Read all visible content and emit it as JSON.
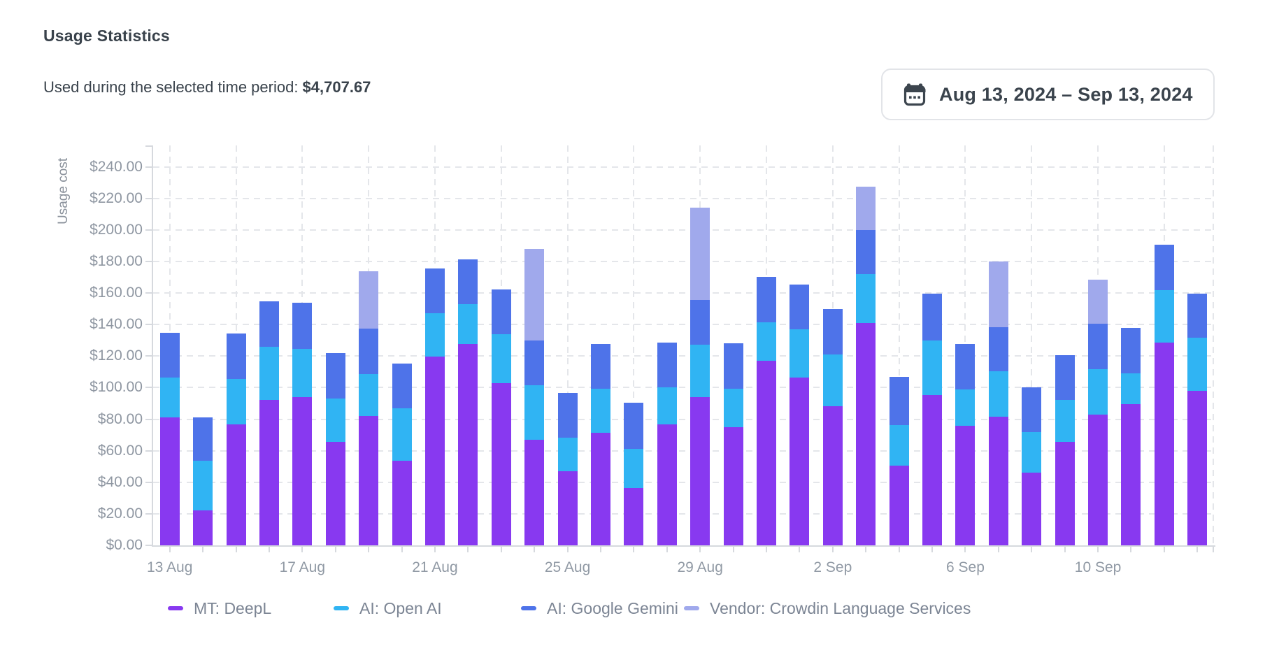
{
  "header": {
    "title": "Usage Statistics",
    "subtitle_label": "Used during the selected time period: ",
    "subtitle_value": "$4,707.67",
    "date_range": "Aug 13, 2024 – Sep 13, 2024",
    "calendar_icon": "calendar-icon"
  },
  "chart_data": {
    "type": "bar",
    "stacked": true,
    "ylabel": "Usage cost",
    "ylim": [
      0,
      240
    ],
    "y_tick_step": 20,
    "grid": true,
    "legend_position": "bottom",
    "y_tick_labels": [
      "$0.00",
      "$20.00",
      "$40.00",
      "$60.00",
      "$80.00",
      "$100.00",
      "$120.00",
      "$140.00",
      "$160.00",
      "$180.00",
      "$200.00",
      "$220.00",
      "$240.00"
    ],
    "x_tick_labels": [
      {
        "bar": 1,
        "label": "13 Aug"
      },
      {
        "bar": 5,
        "label": "17 Aug"
      },
      {
        "bar": 9,
        "label": "21 Aug"
      },
      {
        "bar": 13,
        "label": "25 Aug"
      },
      {
        "bar": 17,
        "label": "29 Aug"
      },
      {
        "bar": 21,
        "label": "2 Sep"
      },
      {
        "bar": 25,
        "label": "6 Sep"
      },
      {
        "bar": 29,
        "label": "10 Sep"
      }
    ],
    "series": [
      {
        "name": "MT: DeepL",
        "color": "#8839F0"
      },
      {
        "name": "AI: Open AI",
        "color": "#30B4F3"
      },
      {
        "name": "AI: Google Gemini",
        "color": "#4E73E9"
      },
      {
        "name": "Vendor: Crowdin Language Services",
        "color": "#A0A9EC"
      }
    ],
    "bars": [
      [
        81.0,
        25.5,
        28.3,
        0
      ],
      [
        22.0,
        31.5,
        27.8,
        0
      ],
      [
        76.5,
        29.0,
        28.9,
        0
      ],
      [
        92.0,
        34.0,
        28.6,
        0
      ],
      [
        94.0,
        30.5,
        29.3,
        0
      ],
      [
        65.5,
        27.8,
        28.7,
        0
      ],
      [
        82.0,
        26.4,
        28.9,
        36.7
      ],
      [
        53.8,
        32.9,
        28.6,
        0
      ],
      [
        119.7,
        27.6,
        28.5,
        0
      ],
      [
        127.5,
        25.3,
        28.6,
        0
      ],
      [
        103.0,
        30.8,
        28.5,
        0
      ],
      [
        67.0,
        34.4,
        28.3,
        58.3
      ],
      [
        47.0,
        21.1,
        28.6,
        0
      ],
      [
        71.4,
        27.8,
        28.6,
        0
      ],
      [
        36.2,
        24.9,
        29.3,
        0
      ],
      [
        76.5,
        23.6,
        28.4,
        0
      ],
      [
        94.0,
        33.1,
        28.4,
        58.7
      ],
      [
        75.0,
        24.2,
        29.0,
        0
      ],
      [
        117.2,
        24.2,
        29.0,
        0
      ],
      [
        106.5,
        30.5,
        28.5,
        0
      ],
      [
        88.2,
        32.8,
        29.0,
        0
      ],
      [
        141.0,
        31.0,
        28.0,
        27.5
      ],
      [
        50.5,
        25.7,
        30.8,
        0
      ],
      [
        95.5,
        34.5,
        29.5,
        0
      ],
      [
        75.8,
        23.2,
        28.5,
        0
      ],
      [
        81.6,
        29.0,
        27.9,
        41.4
      ],
      [
        46.2,
        25.6,
        28.3,
        0
      ],
      [
        65.5,
        26.8,
        28.1,
        0
      ],
      [
        83.1,
        28.7,
        28.9,
        27.8
      ],
      [
        89.4,
        19.8,
        28.5,
        0
      ],
      [
        128.5,
        33.5,
        28.5,
        0
      ],
      [
        98.2,
        33.4,
        28.1,
        0
      ]
    ]
  }
}
